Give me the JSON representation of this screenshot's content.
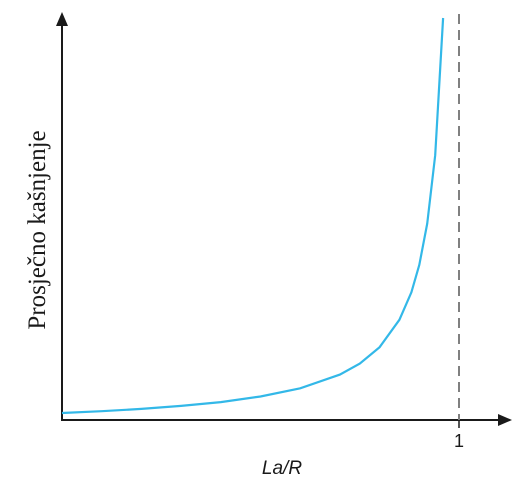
{
  "chart_data": {
    "type": "line",
    "xlabel": "La/R",
    "ylabel": "Prosječno kašnjenje",
    "x_ticks": [
      1
    ],
    "x_tick_labels": [
      "1"
    ],
    "xlim": [
      0,
      1.14
    ],
    "asymptote_x": 1,
    "axes_style": "arrows, no y tick labels",
    "grid": false,
    "legend": "none",
    "series": [
      {
        "x": [
          0,
          0.1,
          0.2,
          0.3,
          0.4,
          0.5,
          0.6,
          0.7,
          0.75,
          0.8,
          0.85,
          0.88,
          0.9,
          0.92,
          0.94,
          0.96
        ],
        "y": [
          0.02,
          0.0222,
          0.025,
          0.0286,
          0.0333,
          0.04,
          0.05,
          0.0667,
          0.08,
          0.1,
          0.1333,
          0.1667,
          0.2,
          0.25,
          0.3333,
          0.5
        ]
      }
    ],
    "colors": {
      "curve": "#33b8e8",
      "asymptote": "#808080",
      "axes": "#1a1a1a"
    }
  }
}
